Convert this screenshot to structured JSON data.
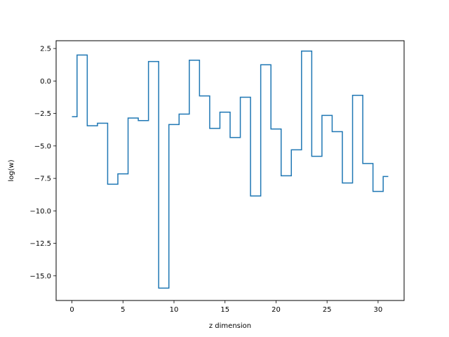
{
  "chart_data": {
    "type": "line",
    "drawstyle": "steps-mid",
    "xlabel": "z dimension",
    "ylabel": "log(w)",
    "xlim": [
      -1.55,
      32.55
    ],
    "ylim": [
      -16.9,
      3.1
    ],
    "xticks": [
      0,
      5,
      10,
      15,
      20,
      25,
      30
    ],
    "yticks": [
      2.5,
      0.0,
      -2.5,
      -5.0,
      -7.5,
      -10.0,
      -12.5,
      -15.0
    ],
    "xtick_labels": [
      "0",
      "5",
      "10",
      "15",
      "20",
      "25",
      "30"
    ],
    "ytick_labels": [
      "2.5",
      "0.0",
      "−2.5",
      "−5.0",
      "−7.5",
      "−10.0",
      "−12.5",
      "−15.0"
    ],
    "grid": false,
    "series": [
      {
        "color": "#1f77b4",
        "x": [
          0,
          1,
          2,
          3,
          4,
          5,
          6,
          7,
          8,
          9,
          10,
          11,
          12,
          13,
          14,
          15,
          16,
          17,
          18,
          19,
          20,
          21,
          22,
          23,
          24,
          25,
          26,
          27,
          28,
          29,
          30,
          31
        ],
        "values": [
          -2.75,
          2.0,
          -3.45,
          -3.25,
          -7.95,
          -7.15,
          -2.85,
          -3.05,
          1.5,
          -15.95,
          -3.35,
          -2.55,
          1.6,
          -1.15,
          -3.65,
          -2.4,
          -4.35,
          -1.25,
          -8.85,
          1.25,
          -3.7,
          -7.3,
          -5.3,
          2.3,
          -5.8,
          -2.65,
          -3.9,
          -7.85,
          -1.1,
          -6.35,
          -8.5,
          -7.35
        ]
      }
    ]
  }
}
